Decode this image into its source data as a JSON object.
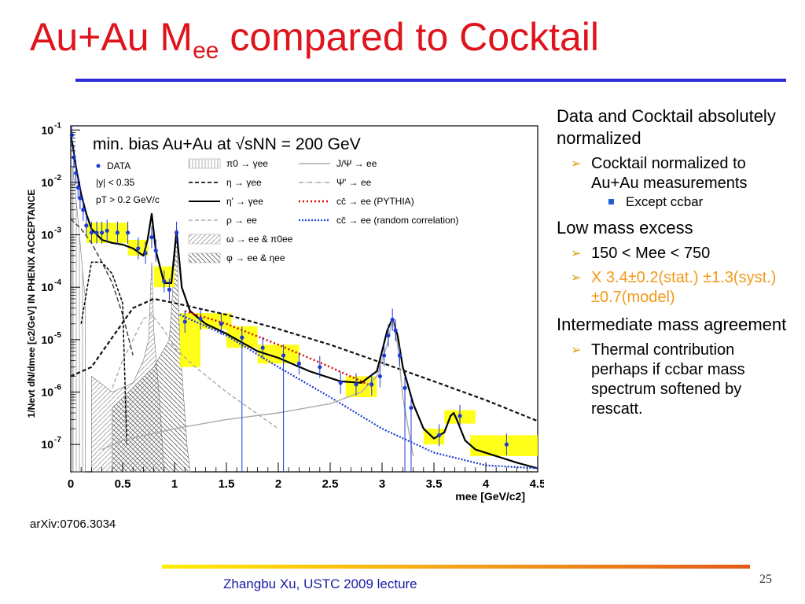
{
  "slide": {
    "title_main": "Au+Au M",
    "title_sub": "ee",
    "title_rest": " compared to Cocktail",
    "source": "arXiv:0706.3034",
    "footer": "Zhangbu Xu, USTC 2009 lecture",
    "page_number": "25"
  },
  "bullets": [
    {
      "level": 1,
      "text": "Data and Cocktail absolutely normalized"
    },
    {
      "level": 2,
      "text": "Cocktail normalized to Au+Au measurements"
    },
    {
      "level": 3,
      "text": "Except ccbar"
    },
    {
      "level": 1,
      "text": "Low mass excess"
    },
    {
      "level": 2,
      "text": "150 < Mee < 750"
    },
    {
      "level": 2,
      "text": "X 3.4±0.2(stat.) ±1.3(syst.)±0.7(model)",
      "color": "#f29a1a"
    },
    {
      "level": 1,
      "text": "Intermediate mass agreement"
    },
    {
      "level": 2,
      "text": "Thermal contribution perhaps if ccbar mass spectrum softened by rescatt."
    }
  ],
  "colors": {
    "title": "#e0141c",
    "rule": "#2b2bd6",
    "data": "#1a3bd8",
    "pythia": "#e00000",
    "error_box": "#ffff00",
    "footer": "#1a1aa6"
  },
  "chart_data": {
    "type": "line",
    "title": "min. bias Au+Au at √sNN = 200 GeV",
    "annotations": [
      "DATA",
      "|y| < 0.35",
      "pT > 0.2 GeV/c"
    ],
    "xlabel": "mee [GeV/c2]",
    "ylabel": "1/Nevt dN/dmee [c2/GeV] IN PHENIX ACCEPTANCE",
    "xlim": [
      0,
      4.5
    ],
    "ylim": [
      3e-08,
      0.12
    ],
    "yscale": "log",
    "x_ticks": [
      "0",
      "0.5",
      "1",
      "1.5",
      "2",
      "2.5",
      "3",
      "3.5",
      "4",
      "4.5"
    ],
    "y_ticks": [
      {
        "value": 0.1,
        "label": "10-1"
      },
      {
        "value": 0.01,
        "label": "10-2"
      },
      {
        "value": 0.001,
        "label": "10-3"
      },
      {
        "value": 0.0001,
        "label": "10-4"
      },
      {
        "value": 1e-05,
        "label": "10-5"
      },
      {
        "value": 1e-06,
        "label": "10-6"
      },
      {
        "value": 1e-07,
        "label": "10-7"
      }
    ],
    "legend": [
      {
        "label": "π0 → γee",
        "style": "hatch-vertical",
        "color": "#999999"
      },
      {
        "label": "η → γee",
        "style": "dashed",
        "color": "#333333"
      },
      {
        "label": "η' → γee",
        "style": "solid",
        "color": "#000000"
      },
      {
        "label": "ρ → ee",
        "style": "dashed-light",
        "color": "#aaaaaa"
      },
      {
        "label": "ω → ee & π0ee",
        "style": "hatch-diag",
        "color": "#999999"
      },
      {
        "label": "φ → ee & ηee",
        "style": "hatch-cross",
        "color": "#666666"
      },
      {
        "label": "J/Ψ → ee",
        "style": "solid-light",
        "color": "#aaaaaa"
      },
      {
        "label": "Ψ' → ee",
        "style": "dashdot",
        "color": "#aaaaaa"
      },
      {
        "label": "cc̄ → ee (PYTHIA)",
        "style": "red-dotted",
        "color": "#e00000"
      },
      {
        "label": "cc̄ → ee (random correlation)",
        "style": "blue-dotted",
        "color": "#1a3bd8"
      }
    ],
    "series": [
      {
        "style": "solid",
        "x": [
          0.0,
          0.02,
          0.05,
          0.1,
          0.15,
          0.2,
          0.3,
          0.4,
          0.5,
          0.6,
          0.7,
          0.74,
          0.78,
          0.82,
          0.9,
          0.97,
          1.02,
          1.07,
          1.15,
          1.3,
          1.5,
          1.8,
          2.0,
          2.3,
          2.6,
          2.8,
          2.95,
          3.0,
          3.05,
          3.1,
          3.15,
          3.2,
          3.3,
          3.4,
          3.5,
          3.6,
          3.66,
          3.69,
          3.72,
          3.8,
          3.9,
          4.1,
          4.3,
          4.5
        ],
        "y": [
          0.08,
          0.05,
          0.02,
          0.006,
          0.0025,
          0.0013,
          0.0008,
          0.0007,
          0.00065,
          0.00055,
          0.0004,
          0.0008,
          0.0025,
          0.0005,
          0.00012,
          0.00012,
          0.0012,
          0.0001,
          3.5e-05,
          2e-05,
          1.3e-05,
          6e-06,
          4.5e-06,
          2.5e-06,
          1.6e-06,
          1.5e-06,
          2.5e-06,
          6e-06,
          1.5e-05,
          2.5e-05,
          1.2e-05,
          3e-06,
          6e-07,
          2e-07,
          1.3e-07,
          1.7e-07,
          3.5e-07,
          4e-07,
          3e-07,
          1.2e-07,
          8e-08,
          6e-08,
          4.5e-08,
          3.5e-08
        ]
      },
      {
        "style": "dashed",
        "x": [
          0.0,
          0.1,
          0.2,
          0.3,
          0.4,
          0.5,
          0.6
        ],
        "y": [
          0.002,
          0.0013,
          0.0007,
          0.0003,
          0.00012,
          3e-05,
          5e-06
        ]
      },
      {
        "style": "eta",
        "x": [
          0.1,
          0.2,
          0.3,
          0.4,
          0.5,
          0.54
        ],
        "y": [
          2e-05,
          0.0003,
          0.0003,
          0.00018,
          5e-05,
          1e-07
        ]
      },
      {
        "style": "dashed-bold",
        "x": [
          0.0,
          0.2,
          0.4,
          0.6,
          0.8,
          1.0,
          1.5,
          2.0,
          2.5,
          3.0,
          3.5,
          4.0,
          4.5
        ],
        "y": [
          2e-06,
          3e-06,
          1.1e-05,
          4e-05,
          6e-05,
          5e-05,
          3e-05,
          1.6e-05,
          8e-06,
          3.6e-06,
          1.6e-06,
          7e-07,
          2.8e-07
        ]
      },
      {
        "style": "red-dotted",
        "x": [
          1.1,
          1.5,
          2.0,
          2.5,
          2.9
        ],
        "y": [
          3.5e-05,
          2e-05,
          8e-06,
          3e-06,
          1.3e-06
        ]
      },
      {
        "style": "blue-dotted",
        "x": [
          1.05,
          1.5,
          2.0,
          2.5,
          3.0,
          3.5,
          4.0,
          4.5
        ],
        "y": [
          3e-05,
          1.2e-05,
          3e-06,
          8e-07,
          2e-07,
          7e-08,
          4e-08,
          3.5e-08
        ]
      },
      {
        "style": "gray-dashed",
        "x": [
          0.4,
          0.5,
          0.6,
          0.7,
          0.78,
          0.9,
          1.0,
          1.2,
          1.5,
          2.0
        ],
        "y": [
          1.2e-06,
          4e-06,
          1e-05,
          2.5e-05,
          3e-05,
          1.5e-05,
          7e-06,
          3e-06,
          1e-06,
          2e-07
        ]
      },
      {
        "style": "gray-solid",
        "x": [
          0.3,
          0.5,
          1.0,
          1.5,
          2.0,
          2.5,
          2.8,
          2.95,
          3.05,
          3.1,
          3.15,
          3.2,
          3.3
        ],
        "y": [
          8e-08,
          1.2e-07,
          2e-07,
          3e-07,
          4e-07,
          6e-07,
          1e-06,
          2e-06,
          8e-06,
          2.5e-05,
          8e-06,
          8e-07,
          6e-08
        ]
      }
    ],
    "data_points": [
      {
        "x": 0.01,
        "y": 0.08
      },
      {
        "x": 0.03,
        "y": 0.03
      },
      {
        "x": 0.05,
        "y": 0.015
      },
      {
        "x": 0.07,
        "y": 0.008
      },
      {
        "x": 0.09,
        "y": 0.005
      },
      {
        "x": 0.12,
        "y": 0.003
      },
      {
        "x": 0.15,
        "y": 0.0015
      },
      {
        "x": 0.2,
        "y": 0.0011
      },
      {
        "x": 0.25,
        "y": 0.0011
      },
      {
        "x": 0.3,
        "y": 0.0011
      },
      {
        "x": 0.35,
        "y": 0.0012
      },
      {
        "x": 0.45,
        "y": 0.0011
      },
      {
        "x": 0.55,
        "y": 0.0011
      },
      {
        "x": 0.65,
        "y": 0.00055
      },
      {
        "x": 0.72,
        "y": 0.00045
      },
      {
        "x": 0.78,
        "y": 0.0009
      },
      {
        "x": 0.82,
        "y": 0.0005
      },
      {
        "x": 0.9,
        "y": 0.00013
      },
      {
        "x": 0.95,
        "y": 9e-05
      },
      {
        "x": 1.02,
        "y": 0.0011
      },
      {
        "x": 1.1,
        "y": 2.2e-05
      },
      {
        "x": 1.25,
        "y": 2.5e-05
      },
      {
        "x": 1.45,
        "y": 2e-05
      },
      {
        "x": 1.65,
        "y": 1.1e-05
      },
      {
        "x": 1.85,
        "y": 7e-06
      },
      {
        "x": 2.05,
        "y": 5e-06
      },
      {
        "x": 2.2,
        "y": 3.5e-06
      },
      {
        "x": 2.4,
        "y": 3e-06
      },
      {
        "x": 2.6,
        "y": 1.5e-06
      },
      {
        "x": 2.75,
        "y": 1.4e-06
      },
      {
        "x": 2.9,
        "y": 1.4e-06
      },
      {
        "x": 2.98,
        "y": 2e-06
      },
      {
        "x": 3.02,
        "y": 5e-06
      },
      {
        "x": 3.06,
        "y": 1.2e-05
      },
      {
        "x": 3.1,
        "y": 2.4e-05
      },
      {
        "x": 3.13,
        "y": 1.5e-05
      },
      {
        "x": 3.17,
        "y": 5e-06
      },
      {
        "x": 3.22,
        "y": 1.2e-06
      },
      {
        "x": 3.28,
        "y": 5e-07
      },
      {
        "x": 3.55,
        "y": 1.5e-07
      },
      {
        "x": 3.75,
        "y": 3.5e-07
      },
      {
        "x": 4.2,
        "y": 1e-07
      }
    ],
    "systematic_boxes": [
      {
        "x0": 0.15,
        "x1": 0.55,
        "y0": 0.0007,
        "y1": 0.0017
      },
      {
        "x0": 0.55,
        "x1": 0.75,
        "y0": 0.0004,
        "y1": 0.0008
      },
      {
        "x0": 0.8,
        "x1": 1.0,
        "y0": 0.0001,
        "y1": 0.00025
      },
      {
        "x0": 1.05,
        "x1": 1.55,
        "y0": 1.6e-05,
        "y1": 3.2e-05
      },
      {
        "x0": 1.05,
        "x1": 1.25,
        "y0": 3e-06,
        "y1": 1.6e-05
      },
      {
        "x0": 1.5,
        "x1": 1.8,
        "y0": 7e-06,
        "y1": 1.8e-05
      },
      {
        "x0": 1.8,
        "x1": 2.2,
        "y0": 3.5e-06,
        "y1": 8e-06
      },
      {
        "x0": 2.65,
        "x1": 2.95,
        "y0": 8e-07,
        "y1": 2e-06
      },
      {
        "x0": 3.4,
        "x1": 3.6,
        "y0": 1e-07,
        "y1": 2e-07
      },
      {
        "x0": 3.6,
        "x1": 3.9,
        "y0": 2.5e-07,
        "y1": 4.5e-07
      },
      {
        "x0": 3.85,
        "x1": 4.5,
        "y0": 6e-08,
        "y1": 1.5e-07
      }
    ]
  }
}
